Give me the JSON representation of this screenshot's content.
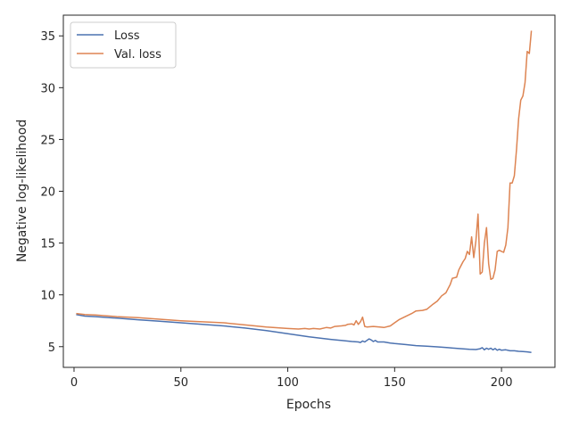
{
  "chart_data": {
    "type": "line",
    "title": "",
    "xlabel": "Epochs",
    "ylabel": "Negative log-likelihood",
    "xlim": [
      -5,
      225
    ],
    "ylim": [
      3,
      37
    ],
    "xticks": [
      0,
      50,
      100,
      150,
      200
    ],
    "yticks": [
      5,
      10,
      15,
      20,
      25,
      30,
      35
    ],
    "grid": false,
    "legend_position": "top-left",
    "series": [
      {
        "name": "Loss",
        "color": "#4c72b0",
        "points": [
          [
            1,
            8.1
          ],
          [
            5,
            7.95
          ],
          [
            10,
            7.9
          ],
          [
            20,
            7.75
          ],
          [
            30,
            7.6
          ],
          [
            40,
            7.45
          ],
          [
            50,
            7.3
          ],
          [
            60,
            7.15
          ],
          [
            70,
            7.0
          ],
          [
            80,
            6.8
          ],
          [
            90,
            6.55
          ],
          [
            100,
            6.25
          ],
          [
            110,
            5.95
          ],
          [
            120,
            5.7
          ],
          [
            125,
            5.6
          ],
          [
            130,
            5.5
          ],
          [
            133,
            5.45
          ],
          [
            134,
            5.4
          ],
          [
            135,
            5.55
          ],
          [
            136,
            5.45
          ],
          [
            137,
            5.6
          ],
          [
            138,
            5.75
          ],
          [
            139,
            5.65
          ],
          [
            140,
            5.5
          ],
          [
            141,
            5.6
          ],
          [
            142,
            5.45
          ],
          [
            145,
            5.45
          ],
          [
            148,
            5.35
          ],
          [
            150,
            5.3
          ],
          [
            155,
            5.2
          ],
          [
            160,
            5.1
          ],
          [
            165,
            5.05
          ],
          [
            170,
            4.98
          ],
          [
            175,
            4.9
          ],
          [
            180,
            4.82
          ],
          [
            185,
            4.75
          ],
          [
            188,
            4.72
          ],
          [
            190,
            4.8
          ],
          [
            191,
            4.9
          ],
          [
            192,
            4.7
          ],
          [
            193,
            4.85
          ],
          [
            194,
            4.75
          ],
          [
            195,
            4.85
          ],
          [
            196,
            4.7
          ],
          [
            197,
            4.82
          ],
          [
            198,
            4.65
          ],
          [
            199,
            4.75
          ],
          [
            200,
            4.65
          ],
          [
            202,
            4.7
          ],
          [
            204,
            4.6
          ],
          [
            206,
            4.6
          ],
          [
            208,
            4.55
          ],
          [
            210,
            4.52
          ],
          [
            212,
            4.5
          ],
          [
            214,
            4.45
          ]
        ]
      },
      {
        "name": "Val. loss",
        "color": "#dd8452",
        "points": [
          [
            1,
            8.2
          ],
          [
            5,
            8.1
          ],
          [
            10,
            8.05
          ],
          [
            20,
            7.9
          ],
          [
            30,
            7.8
          ],
          [
            40,
            7.65
          ],
          [
            50,
            7.5
          ],
          [
            60,
            7.4
          ],
          [
            70,
            7.3
          ],
          [
            80,
            7.1
          ],
          [
            90,
            6.9
          ],
          [
            100,
            6.75
          ],
          [
            105,
            6.7
          ],
          [
            108,
            6.75
          ],
          [
            110,
            6.7
          ],
          [
            112,
            6.75
          ],
          [
            115,
            6.7
          ],
          [
            118,
            6.85
          ],
          [
            120,
            6.8
          ],
          [
            122,
            6.95
          ],
          [
            125,
            7.0
          ],
          [
            127,
            7.05
          ],
          [
            128,
            7.15
          ],
          [
            130,
            7.2
          ],
          [
            131,
            7.1
          ],
          [
            132,
            7.5
          ],
          [
            133,
            7.15
          ],
          [
            134,
            7.4
          ],
          [
            135,
            7.85
          ],
          [
            136,
            6.95
          ],
          [
            137,
            6.9
          ],
          [
            140,
            6.95
          ],
          [
            143,
            6.9
          ],
          [
            145,
            6.85
          ],
          [
            148,
            7.0
          ],
          [
            150,
            7.3
          ],
          [
            152,
            7.6
          ],
          [
            155,
            7.9
          ],
          [
            158,
            8.2
          ],
          [
            160,
            8.45
          ],
          [
            163,
            8.5
          ],
          [
            165,
            8.6
          ],
          [
            168,
            9.1
          ],
          [
            170,
            9.4
          ],
          [
            172,
            9.9
          ],
          [
            174,
            10.2
          ],
          [
            175,
            10.6
          ],
          [
            176,
            11.0
          ],
          [
            177,
            11.6
          ],
          [
            179,
            11.7
          ],
          [
            180,
            12.4
          ],
          [
            181,
            12.8
          ],
          [
            182,
            13.2
          ],
          [
            183,
            13.5
          ],
          [
            184,
            14.2
          ],
          [
            185,
            13.9
          ],
          [
            186,
            15.6
          ],
          [
            187,
            13.6
          ],
          [
            188,
            15.2
          ],
          [
            189,
            17.8
          ],
          [
            190,
            12.0
          ],
          [
            191,
            12.2
          ],
          [
            192,
            15.0
          ],
          [
            193,
            16.5
          ],
          [
            194,
            13.0
          ],
          [
            195,
            11.5
          ],
          [
            196,
            11.6
          ],
          [
            197,
            12.4
          ],
          [
            198,
            14.2
          ],
          [
            199,
            14.3
          ],
          [
            200,
            14.2
          ],
          [
            201,
            14.1
          ],
          [
            202,
            14.8
          ],
          [
            203,
            16.5
          ],
          [
            204,
            20.8
          ],
          [
            205,
            20.8
          ],
          [
            206,
            21.5
          ],
          [
            207,
            24.0
          ],
          [
            208,
            27.0
          ],
          [
            209,
            28.8
          ],
          [
            210,
            29.2
          ],
          [
            211,
            30.5
          ],
          [
            212,
            33.5
          ],
          [
            213,
            33.3
          ],
          [
            214,
            35.5
          ]
        ]
      }
    ]
  }
}
